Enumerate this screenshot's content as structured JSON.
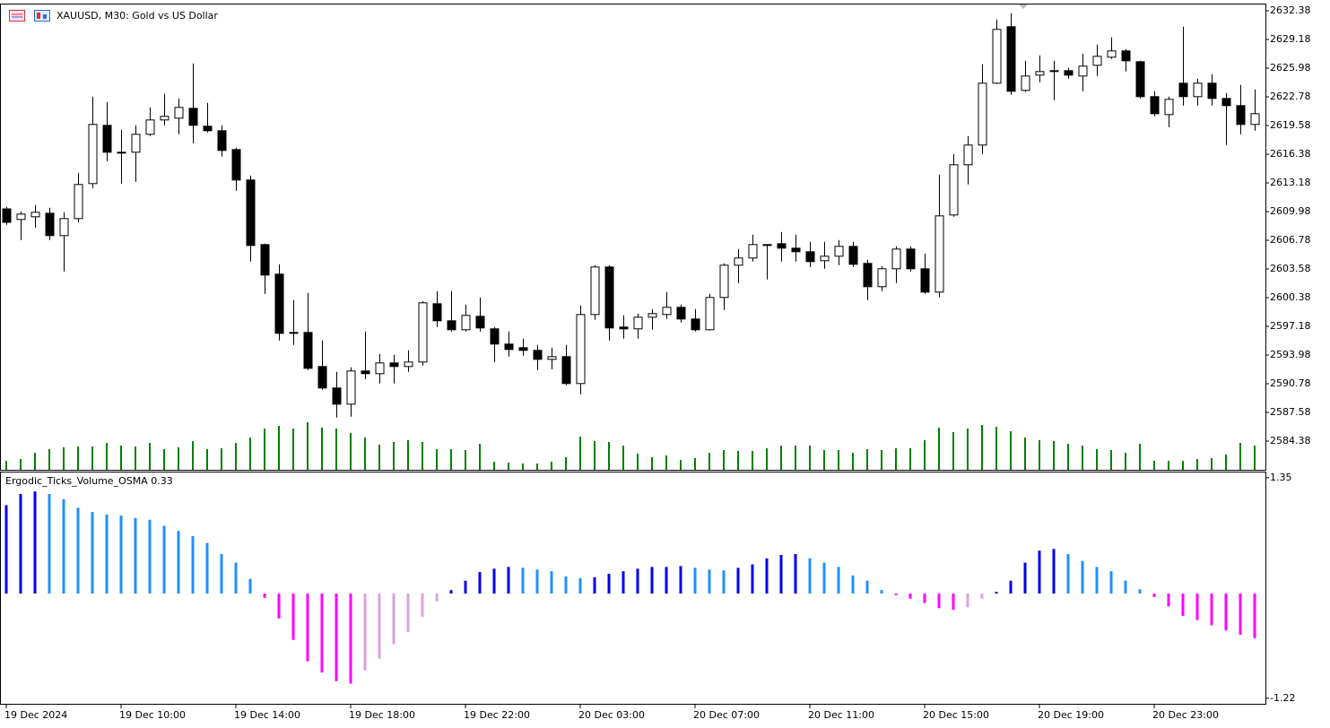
{
  "chart_data": [
    {
      "type": "candlestick",
      "title": "XAUUSD, M30:  Gold vs US Dollar",
      "categories": [
        "19 Dec 2024",
        null,
        null,
        null,
        null,
        null,
        null,
        null,
        "19 Dec 10:00",
        null,
        null,
        null,
        null,
        null,
        null,
        null,
        "19 Dec 14:00",
        null,
        null,
        null,
        null,
        null,
        null,
        null,
        "19 Dec 18:00",
        null,
        null,
        null,
        null,
        null,
        null,
        null,
        "19 Dec 22:00",
        null,
        null,
        null,
        null,
        null,
        null,
        null,
        "20 Dec 03:00",
        null,
        null,
        null,
        null,
        null,
        null,
        null,
        "20 Dec 07:00",
        null,
        null,
        null,
        null,
        null,
        null,
        null,
        "20 Dec 11:00",
        null,
        null,
        null,
        null,
        null,
        null,
        null,
        "20 Dec 15:00",
        null,
        null,
        null,
        null,
        null,
        null,
        null,
        "20 Dec 19:00",
        null,
        null,
        null,
        null,
        null,
        null,
        null,
        "20 Dec 23:00",
        null,
        null,
        null,
        null,
        null,
        null,
        null
      ],
      "open": [
        2610.28,
        2609.1,
        2609.4,
        2609.8,
        2607.3,
        2609.2,
        2613.1,
        2619.6,
        2616.6,
        2616.6,
        2618.6,
        2620.2,
        2620.4,
        2621.5,
        2619.5,
        2619.0,
        2616.9,
        2613.5,
        2606.3,
        2603.0,
        2596.5,
        2596.5,
        2592.7,
        2590.3,
        2588.5,
        2592.2,
        2591.9,
        2593.1,
        2592.7,
        2593.2,
        2599.7,
        2597.8,
        2596.8,
        2598.3,
        2596.9,
        2595.2,
        2594.8,
        2594.5,
        2593.5,
        2593.8,
        2590.8,
        2598.5,
        2603.8,
        2597.1,
        2596.9,
        2598.2,
        2598.5,
        2599.3,
        2598.0,
        2596.8,
        2600.4,
        2604.0,
        2604.8,
        2606.3,
        2606.4,
        2605.9,
        2605.5,
        2604.5,
        2605.0,
        2606.1,
        2604.2,
        2601.6,
        2603.6,
        2605.8,
        2603.6,
        2601.0,
        2609.6,
        2615.2,
        2617.4,
        2624.3,
        2630.6,
        2623.5,
        2625.2,
        2625.7,
        2625.7,
        2625.1,
        2626.3,
        2627.2,
        2627.9,
        2626.7,
        2622.8,
        2620.8,
        2624.3,
        2622.8,
        2624.3,
        2622.6,
        2621.8,
        2619.7
      ],
      "high": [
        2610.5,
        2610.0,
        2610.7,
        2610.4,
        2609.9,
        2614.3,
        2622.8,
        2622.2,
        2619.1,
        2619.6,
        2621.6,
        2623.1,
        2622.6,
        2626.5,
        2622.1,
        2619.6,
        2617.1,
        2614.0,
        2606.4,
        2604.1,
        2600.1,
        2600.9,
        2595.6,
        2592.1,
        2592.6,
        2596.6,
        2594.1,
        2594.0,
        2594.5,
        2600.0,
        2601.1,
        2601.1,
        2599.6,
        2600.4,
        2597.1,
        2596.6,
        2595.8,
        2595.1,
        2594.8,
        2595.1,
        2599.5,
        2604.0,
        2604.0,
        2598.4,
        2598.6,
        2599.1,
        2601.0,
        2599.6,
        2599.1,
        2600.8,
        2604.2,
        2605.8,
        2607.4,
        2606.3,
        2607.7,
        2607.4,
        2606.6,
        2606.6,
        2606.8,
        2606.6,
        2604.6,
        2603.9,
        2606.1,
        2606.1,
        2605.3,
        2614.1,
        2616.4,
        2618.4,
        2626.4,
        2631.4,
        2632.1,
        2626.8,
        2627.4,
        2626.8,
        2626.0,
        2627.6,
        2628.6,
        2629.4,
        2628.1,
        2626.8,
        2623.4,
        2622.8,
        2630.6,
        2624.8,
        2625.3,
        2623.2,
        2624.1,
        2623.6
      ],
      "low": [
        2608.5,
        2606.8,
        2608.2,
        2606.8,
        2603.3,
        2608.8,
        2612.6,
        2615.6,
        2613.1,
        2613.3,
        2618.4,
        2619.6,
        2618.6,
        2617.6,
        2618.8,
        2616.1,
        2612.3,
        2604.4,
        2600.8,
        2595.6,
        2595.1,
        2592.3,
        2590.1,
        2587.0,
        2587.1,
        2591.3,
        2590.8,
        2590.8,
        2592.1,
        2592.8,
        2597.1,
        2596.6,
        2596.6,
        2596.6,
        2593.2,
        2593.8,
        2593.9,
        2592.3,
        2592.4,
        2590.6,
        2589.6,
        2597.9,
        2595.6,
        2595.8,
        2595.8,
        2596.8,
        2598.0,
        2597.6,
        2596.6,
        2596.7,
        2599.0,
        2602.0,
        2604.4,
        2602.4,
        2604.4,
        2604.4,
        2603.8,
        2603.6,
        2604.0,
        2603.8,
        2600.1,
        2601.1,
        2602.0,
        2603.3,
        2600.8,
        2600.4,
        2609.4,
        2613.0,
        2616.4,
        2624.2,
        2623.0,
        2623.3,
        2624.4,
        2622.4,
        2624.8,
        2623.4,
        2625.1,
        2627.0,
        2625.6,
        2622.6,
        2620.6,
        2619.4,
        2621.8,
        2621.8,
        2621.8,
        2617.4,
        2618.6,
        2619.0
      ],
      "close": [
        2608.78,
        2609.7,
        2609.9,
        2607.3,
        2609.2,
        2613.0,
        2619.7,
        2616.6,
        2616.5,
        2618.6,
        2620.2,
        2620.6,
        2621.6,
        2619.6,
        2619.0,
        2616.8,
        2613.5,
        2606.2,
        2602.9,
        2596.4,
        2596.4,
        2592.5,
        2590.3,
        2588.5,
        2592.2,
        2591.9,
        2593.1,
        2592.7,
        2593.2,
        2599.8,
        2597.8,
        2596.8,
        2598.4,
        2597.0,
        2595.2,
        2594.6,
        2594.5,
        2593.5,
        2593.8,
        2590.8,
        2598.5,
        2603.8,
        2597.0,
        2596.9,
        2598.2,
        2598.6,
        2599.3,
        2598.0,
        2596.8,
        2600.4,
        2604.0,
        2604.8,
        2606.3,
        2606.2,
        2605.9,
        2605.5,
        2604.4,
        2605.0,
        2606.1,
        2604.1,
        2601.6,
        2603.6,
        2605.8,
        2603.6,
        2601.0,
        2609.5,
        2615.2,
        2617.4,
        2624.3,
        2630.3,
        2623.4,
        2625.1,
        2625.6,
        2625.6,
        2625.2,
        2626.2,
        2627.3,
        2627.9,
        2626.8,
        2622.8,
        2620.9,
        2622.5,
        2622.8,
        2624.3,
        2622.6,
        2621.8,
        2619.7,
        2620.9
      ],
      "ylim": [
        2581.18,
        2633.08
      ],
      "yticks": [
        2632.38,
        2629.18,
        2625.98,
        2622.78,
        2619.58,
        2616.38,
        2613.18,
        2609.98,
        2606.78,
        2603.58,
        2600.38,
        2597.18,
        2593.98,
        2590.78,
        2587.58,
        2584.38
      ],
      "up_color": "#ffffff",
      "down_color": "#000000"
    },
    {
      "type": "volume",
      "values": [
        10,
        12,
        19,
        23,
        25,
        26,
        26,
        30,
        27,
        26,
        30,
        23,
        25,
        32,
        23,
        24,
        30,
        36,
        46,
        49,
        46,
        53,
        47,
        46,
        41,
        36,
        28,
        31,
        33,
        31,
        23,
        23,
        22,
        29,
        9,
        8,
        7,
        7,
        9,
        14,
        37,
        32,
        31,
        27,
        18,
        14,
        16,
        11,
        13,
        19,
        22,
        21,
        21,
        24,
        27,
        27,
        27,
        22,
        22,
        19,
        23,
        22,
        24,
        24,
        33,
        47,
        42,
        46,
        50,
        48,
        43,
        36,
        33,
        32,
        29,
        27,
        23,
        22,
        19,
        29,
        10,
        10,
        10,
        12,
        13,
        17,
        30,
        27
      ],
      "color": "#008000"
    },
    {
      "type": "oscillator",
      "title": "Ergodic_Ticks_Volume_OSMA 0.33",
      "values": [
        1.03,
        1.16,
        1.19,
        1.16,
        1.1,
        1.0,
        0.95,
        0.92,
        0.91,
        0.88,
        0.86,
        0.79,
        0.73,
        0.67,
        0.59,
        0.46,
        0.36,
        0.17,
        -0.05,
        -0.29,
        -0.54,
        -0.79,
        -0.92,
        -1.02,
        -1.05,
        -0.9,
        -0.76,
        -0.59,
        -0.45,
        -0.27,
        -0.09,
        0.04,
        0.15,
        0.25,
        0.29,
        0.31,
        0.3,
        0.28,
        0.26,
        0.2,
        0.18,
        0.19,
        0.23,
        0.26,
        0.29,
        0.31,
        0.31,
        0.32,
        0.3,
        0.28,
        0.27,
        0.3,
        0.34,
        0.41,
        0.45,
        0.46,
        0.41,
        0.36,
        0.31,
        0.21,
        0.15,
        0.04,
        -0.02,
        -0.06,
        -0.11,
        -0.17,
        -0.19,
        -0.16,
        -0.06,
        0.02,
        0.15,
        0.36,
        0.5,
        0.52,
        0.46,
        0.38,
        0.31,
        0.26,
        0.15,
        0.05,
        -0.04,
        -0.15,
        -0.26,
        -0.31,
        -0.37,
        -0.43,
        -0.48,
        -0.52
      ],
      "ylim": [
        -1.285,
        1.411
      ],
      "yticks": [
        1.35,
        -1.22
      ],
      "colors": {
        "rising_above": "#0000ee",
        "falling_above": "#1e90ff",
        "falling_below": "#ff00ff",
        "rising_below": "#dda0dd"
      }
    }
  ]
}
